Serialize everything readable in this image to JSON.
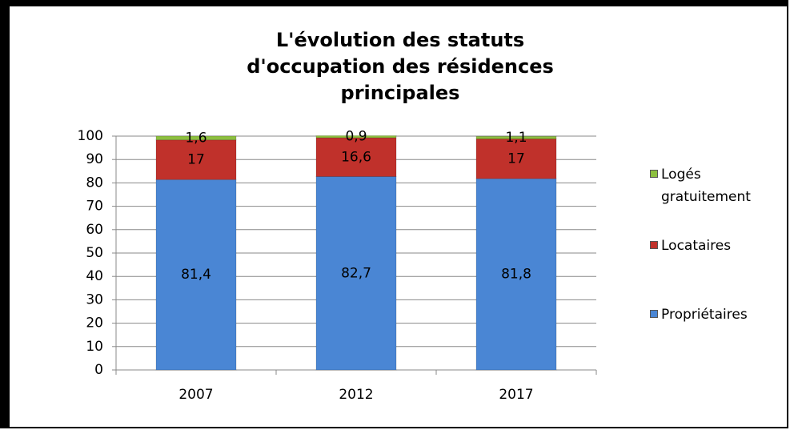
{
  "chart_data": {
    "type": "stacked_bar",
    "title": "L'évolution des statuts d'occupation des résidences principales",
    "categories": [
      "2007",
      "2012",
      "2017"
    ],
    "series": [
      {
        "name": "Propriétaires",
        "color": "#4a86d4",
        "values": [
          81.4,
          82.7,
          81.8
        ],
        "value_labels": [
          "81,4",
          "82,7",
          "81,8"
        ]
      },
      {
        "name": "Locataires",
        "color": "#c0312b",
        "values": [
          17,
          16.6,
          17
        ],
        "value_labels": [
          "17",
          "16,6",
          "17"
        ]
      },
      {
        "name": "Logés gratuitement",
        "color": "#8cbf3f",
        "values": [
          1.6,
          0.9,
          1.1
        ],
        "value_labels": [
          "1,6",
          "0,9",
          "1,1"
        ]
      }
    ],
    "ylim": [
      0,
      100
    ],
    "yticks": [
      0,
      10,
      20,
      30,
      40,
      50,
      60,
      70,
      80,
      90,
      100
    ],
    "grid": true
  }
}
